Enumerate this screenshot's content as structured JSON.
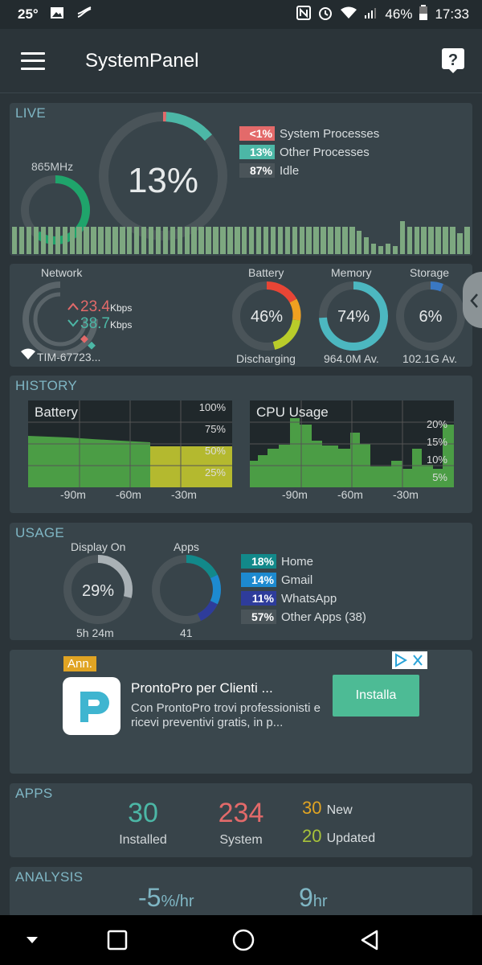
{
  "status_bar": {
    "temperature": "25°",
    "battery_percent": "46%",
    "time": "17:33"
  },
  "app_bar": {
    "title": "SystemPanel"
  },
  "live": {
    "section_title": "LIVE",
    "cpu_freq": "865MHz",
    "cpu_percent": "13%",
    "legend": [
      {
        "value": "<1%",
        "label": "System Processes",
        "color": "#e36a6a"
      },
      {
        "value": "13%",
        "label": "Other Processes",
        "color": "#4cb7a6"
      },
      {
        "value": "87%",
        "label": "Idle",
        "color": "#4a5459"
      }
    ],
    "freq_level": 0.6,
    "cpu_history": [
      0.66,
      0.66,
      0.66,
      0.66,
      0.66,
      0.66,
      0.66,
      0.66,
      0.66,
      0.66,
      0.66,
      0.66,
      0.66,
      0.66,
      0.66,
      0.66,
      0.66,
      0.66,
      0.66,
      0.66,
      0.66,
      0.66,
      0.66,
      0.66,
      0.66,
      0.66,
      0.66,
      0.66,
      0.66,
      0.66,
      0.66,
      0.66,
      0.66,
      0.66,
      0.66,
      0.66,
      0.66,
      0.66,
      0.66,
      0.66,
      0.66,
      0.66,
      0.66,
      0.66,
      0.66,
      0.66,
      0.66,
      0.66,
      0.56,
      0.4,
      0.25,
      0.2,
      0.25,
      0.2,
      0.78,
      0.66,
      0.66,
      0.66,
      0.66,
      0.66,
      0.66,
      0.66,
      0.5,
      0.66
    ]
  },
  "status": {
    "network_label": "Network",
    "upload_value": "23.4",
    "download_value": "38.7",
    "speed_unit": "Kbps",
    "wifi_name": "TIM-67723...",
    "battery_label": "Battery",
    "battery_value": "46%",
    "battery_state": "Discharging",
    "memory_label": "Memory",
    "memory_value": "74%",
    "memory_available": "964.0M Av.",
    "storage_label": "Storage",
    "storage_value": "6%",
    "storage_available": "102.1G Av.",
    "colors": {
      "upload": "#e36a6a",
      "download": "#4cb7a6",
      "memory": "#4cb7c0",
      "storage": "#3a78c2"
    }
  },
  "history": {
    "section_title": "HISTORY",
    "battery_chart": {
      "title": "Battery",
      "y_ticks": [
        "100%",
        "75%",
        "50%",
        "25%"
      ],
      "x_ticks": [
        "-90m",
        "-60m",
        "-30m"
      ]
    },
    "cpu_chart": {
      "title": "CPU Usage",
      "y_ticks": [
        "20%",
        "15%",
        "10%",
        "5%"
      ],
      "x_ticks": [
        "-90m",
        "-60m",
        "-30m"
      ]
    }
  },
  "usage": {
    "section_title": "USAGE",
    "display_label": "Display On",
    "display_value": "29%",
    "display_time": "5h 24m",
    "apps_label": "Apps",
    "apps_count": "41",
    "legend": [
      {
        "value": "18%",
        "label": "Home",
        "color": "#12898a"
      },
      {
        "value": "14%",
        "label": "Gmail",
        "color": "#1d8ad0"
      },
      {
        "value": "11%",
        "label": "WhatsApp",
        "color": "#2e3c9b"
      },
      {
        "value": "57%",
        "label": "Other Apps (38)",
        "color": "#4a5459"
      }
    ]
  },
  "ad": {
    "badge": "Ann.",
    "title": "ProntoPro per Clienti ...",
    "description": "Con ProntoPro trovi professionisti e ricevi preventivi gratis, in p...",
    "button": "Installa"
  },
  "apps": {
    "section_title": "APPS",
    "installed_value": "30",
    "installed_label": "Installed",
    "system_value": "234",
    "system_label": "System",
    "new_value": "30",
    "new_label": "New",
    "updated_value": "20",
    "updated_label": "Updated"
  },
  "analysis": {
    "section_title": "ANALYSIS",
    "drain_value": "-5",
    "drain_unit": "%/hr",
    "remaining_value": "9",
    "remaining_unit": "hr"
  }
}
